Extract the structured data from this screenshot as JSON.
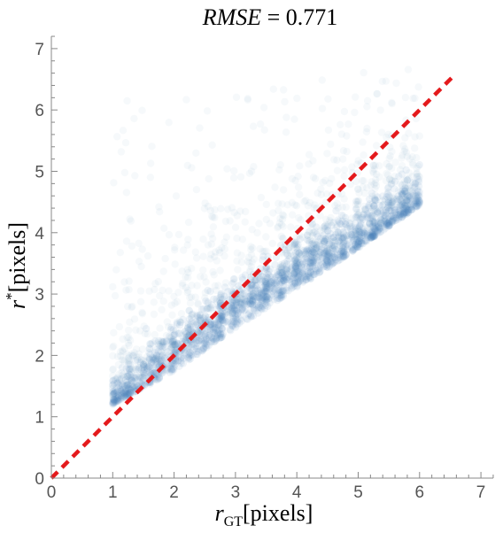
{
  "chart_data": {
    "type": "scatter",
    "title": {
      "italic_part": "RMSE",
      "value_part": " = 0.771"
    },
    "xlabel": {
      "base": "r",
      "subscript": "GT",
      "unit": "[pixels]"
    },
    "ylabel": {
      "base": "r",
      "superscript": "*",
      "unit": "[pixels]"
    },
    "xlim": [
      0,
      7.2
    ],
    "ylim": [
      0,
      7.2
    ],
    "xticks": [
      "0",
      "1",
      "2",
      "3",
      "4",
      "5",
      "6",
      "7"
    ],
    "yticks": [
      "0",
      "1",
      "2",
      "3",
      "4",
      "5",
      "6",
      "7"
    ],
    "grid": false,
    "reference_line": {
      "description": "y = x",
      "from": [
        0,
        0
      ],
      "to": [
        6.55,
        6.55
      ],
      "color": "#e41a1c",
      "style": "dashed"
    },
    "points_color": "#4f86b8",
    "point_cloud_summary": {
      "x_range": [
        1.0,
        6.0
      ],
      "lower_envelope": [
        [
          1.0,
          1.2
        ],
        [
          2.0,
          1.75
        ],
        [
          3.0,
          2.45
        ],
        [
          4.0,
          3.1
        ],
        [
          5.0,
          3.75
        ],
        [
          6.0,
          4.45
        ]
      ],
      "dense_band_center": [
        [
          1.0,
          1.25
        ],
        [
          2.0,
          2.05
        ],
        [
          3.0,
          2.75
        ],
        [
          4.0,
          3.4
        ],
        [
          5.0,
          3.95
        ],
        [
          6.0,
          4.55
        ]
      ],
      "upper_outliers_max": 7.1
    }
  }
}
